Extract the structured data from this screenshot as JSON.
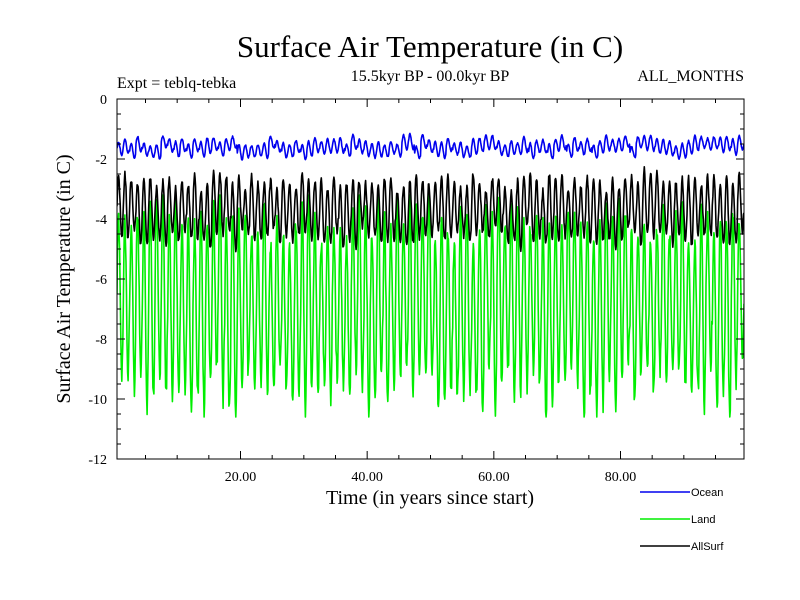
{
  "chart_data": {
    "type": "line",
    "title": "Surface Air Temperature (in C)",
    "subtitle_left": "Expt = teblq-tebka",
    "subtitle_center": "15.5kyr BP - 00.0kyr BP",
    "subtitle_right": "ALL_MONTHS",
    "xlabel": "Time (in years since start)",
    "ylabel": "Surface Air Temperature (in C)",
    "xlim": [
      0.5,
      99.5
    ],
    "ylim": [
      -12,
      0
    ],
    "xticks": [
      20,
      40,
      60,
      80
    ],
    "xtick_labels": [
      "20.00",
      "40.00",
      "60.00",
      "80.00"
    ],
    "yticks": [
      0,
      -2,
      -4,
      -6,
      -8,
      -10,
      -12
    ],
    "ytick_labels": [
      "0",
      "-2",
      "-4",
      "-6",
      "-8",
      "-10",
      "-12"
    ],
    "samples_per_year": 12,
    "series": [
      {
        "name": "Ocean",
        "color": "#0000ee",
        "mean": -1.6,
        "seasonal_amplitude": 0.22,
        "year_noise": 0.18,
        "min": -2.2,
        "max": -1.0
      },
      {
        "name": "Land",
        "color": "#00ee00",
        "mean": -6.8,
        "seasonal_amplitude": 2.9,
        "year_noise": 0.6,
        "min": -10.6,
        "max": -3.2
      },
      {
        "name": "AllSurf",
        "color": "#000000",
        "mean": -3.7,
        "seasonal_amplitude": 0.95,
        "year_noise": 0.25,
        "min": -5.2,
        "max": -1.9
      }
    ],
    "legend_position": "bottom-right"
  }
}
